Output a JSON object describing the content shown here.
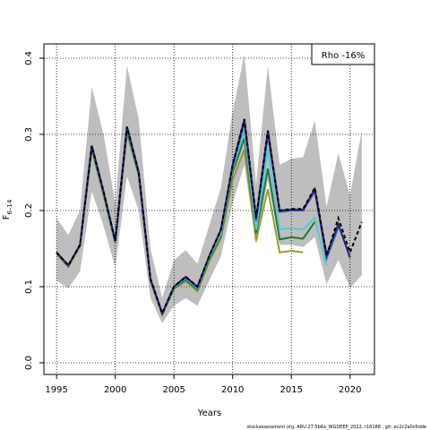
{
  "chart_data": {
    "type": "line",
    "xlabel": "Years",
    "ylabel": "F",
    "ylabel_sub": "6–14",
    "legend_text": "Rho -16%",
    "legend_position": "top-right",
    "footer": "stockassessment.org, ARU.27.5b6a_WGDEEP_2022, r16188 , git: ec2c2a0c6dde",
    "x": [
      1995,
      1996,
      1997,
      1998,
      1999,
      2000,
      2001,
      2002,
      2003,
      2004,
      2005,
      2006,
      2007,
      2008,
      2009,
      2010,
      2011,
      2012,
      2013,
      2014,
      2015,
      2016,
      2017,
      2018,
      2019,
      2020,
      2021
    ],
    "xlim": [
      1993.92,
      2022.08
    ],
    "xticks": [
      1995,
      2000,
      2005,
      2010,
      2015,
      2020
    ],
    "ylim": [
      -0.0153,
      0.4188
    ],
    "yticks": [
      {
        "value": 0,
        "label": "0.0"
      },
      0.1,
      0.2,
      0.3,
      0.4
    ],
    "grid": true,
    "band_color": "#bebebe",
    "band_upper": [
      0.19,
      0.168,
      0.2,
      0.362,
      0.3,
      0.21,
      0.39,
      0.32,
      0.15,
      0.085,
      0.135,
      0.148,
      0.13,
      0.18,
      0.23,
      0.33,
      0.405,
      0.235,
      0.39,
      0.26,
      0.268,
      0.27,
      0.318,
      0.205,
      0.275,
      0.22,
      0.305
    ],
    "band_lower": [
      0.108,
      0.098,
      0.12,
      0.225,
      0.18,
      0.125,
      0.245,
      0.2,
      0.085,
      0.052,
      0.075,
      0.085,
      0.075,
      0.108,
      0.14,
      0.21,
      0.26,
      0.155,
      0.24,
      0.155,
      0.155,
      0.152,
      0.165,
      0.103,
      0.135,
      0.098,
      0.115
    ],
    "series": [
      {
        "color": "#9a9a30",
        "values": [
          0.143,
          0.126,
          0.153,
          0.28,
          0.22,
          0.157,
          0.302,
          0.245,
          0.107,
          0.063,
          0.097,
          0.107,
          0.094,
          0.133,
          0.163,
          0.24,
          0.28,
          0.16,
          0.228,
          0.145,
          0.147,
          0.145,
          null,
          null,
          null,
          null,
          null
        ]
      },
      {
        "color": "#1b7837",
        "values": [
          0.144,
          0.127,
          0.154,
          0.282,
          0.222,
          0.158,
          0.305,
          0.247,
          0.108,
          0.064,
          0.098,
          0.109,
          0.096,
          0.136,
          0.167,
          0.25,
          0.295,
          0.17,
          0.255,
          0.162,
          0.165,
          0.163,
          0.185,
          null,
          null,
          null,
          null
        ]
      },
      {
        "color": "#5bc8d0",
        "values": [
          0.145,
          0.128,
          0.155,
          0.284,
          0.224,
          0.159,
          0.308,
          0.249,
          0.109,
          0.065,
          0.099,
          0.111,
          0.098,
          0.138,
          0.17,
          0.255,
          0.305,
          0.175,
          0.28,
          0.175,
          0.177,
          0.175,
          0.19,
          0.127,
          null,
          null,
          null
        ]
      },
      {
        "color": "#2166ac",
        "values": [
          0.145,
          0.128,
          0.155,
          0.285,
          0.225,
          0.16,
          0.31,
          0.25,
          0.11,
          0.065,
          0.1,
          0.112,
          0.099,
          0.14,
          0.174,
          0.258,
          0.315,
          0.186,
          0.3,
          0.198,
          0.2,
          0.2,
          0.225,
          0.137,
          0.178,
          null,
          null
        ]
      },
      {
        "color": "#2b1d7a",
        "values": [
          0.145,
          0.128,
          0.155,
          0.285,
          0.225,
          0.16,
          0.31,
          0.25,
          0.11,
          0.065,
          0.1,
          0.113,
          0.1,
          0.14,
          0.175,
          0.26,
          0.32,
          0.19,
          0.305,
          0.2,
          0.201,
          0.201,
          0.228,
          0.142,
          0.182,
          0.138,
          null
        ]
      },
      {
        "color": "#000000",
        "dash": true,
        "values": [
          0.145,
          0.128,
          0.155,
          0.285,
          0.225,
          0.16,
          0.31,
          0.25,
          0.11,
          0.065,
          0.1,
          0.113,
          0.1,
          0.14,
          0.175,
          0.26,
          0.32,
          0.19,
          0.305,
          0.2,
          0.202,
          0.202,
          0.23,
          0.14,
          0.19,
          0.145,
          0.185
        ]
      }
    ]
  }
}
